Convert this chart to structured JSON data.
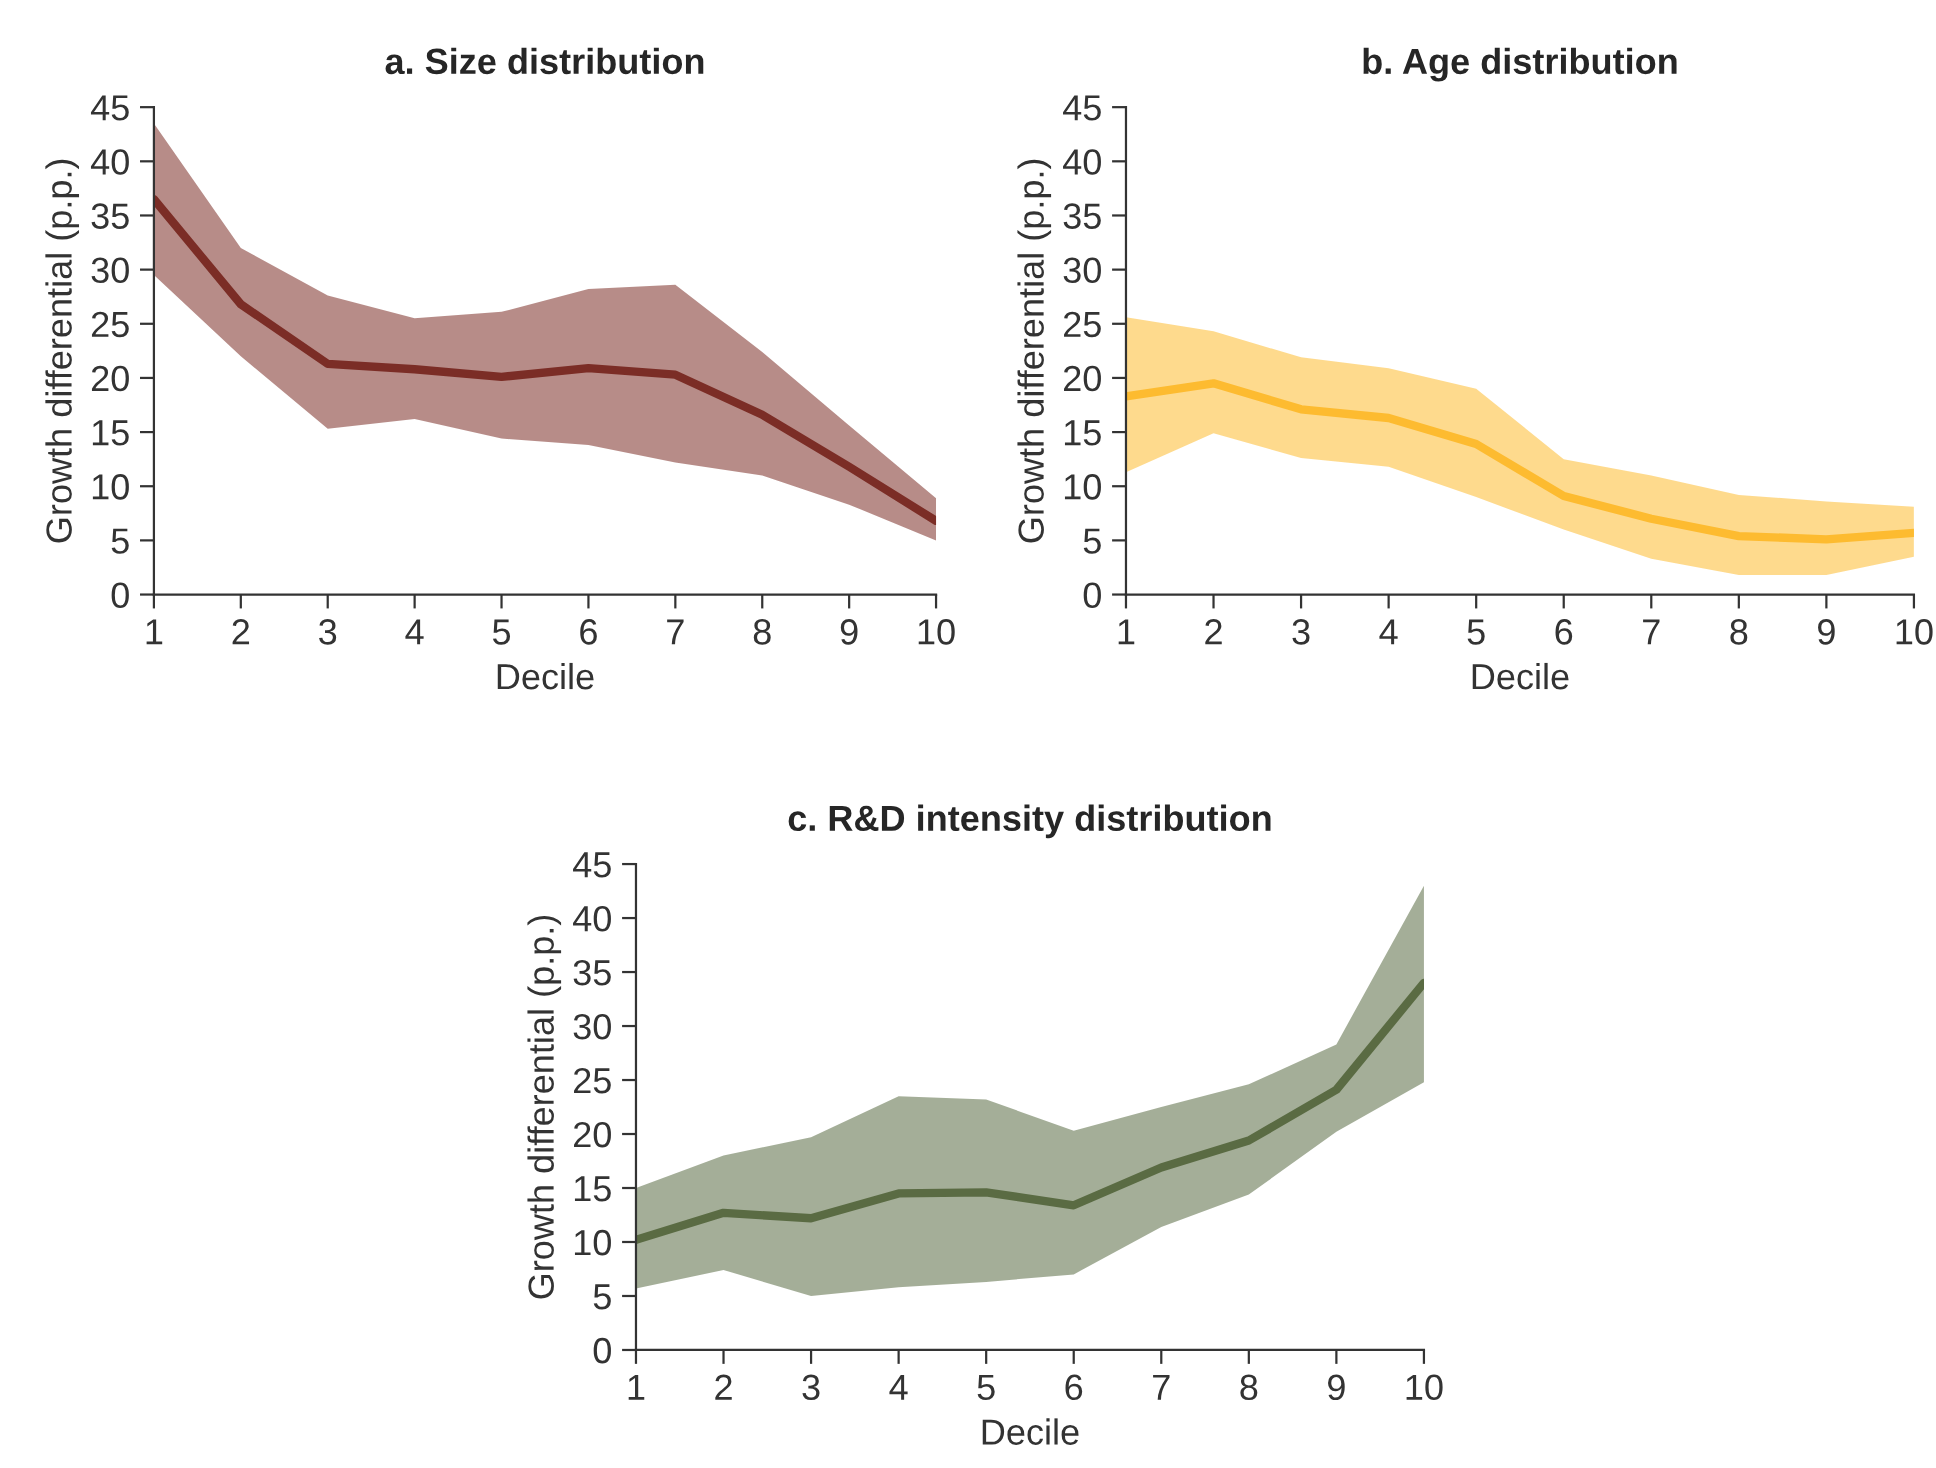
{
  "chart_data": [
    {
      "type": "line",
      "title": "a. Size distribution",
      "xlabel": "Decile",
      "ylabel": "Growth differential (p.p.)",
      "x": [
        1,
        2,
        3,
        4,
        5,
        6,
        7,
        8,
        9,
        10
      ],
      "xlim": [
        1,
        10
      ],
      "xticks": [
        1,
        2,
        3,
        4,
        5,
        6,
        7,
        8,
        9,
        10
      ],
      "ylim": [
        0,
        45
      ],
      "yticks": [
        0,
        5,
        10,
        15,
        20,
        25,
        30,
        35,
        40,
        45
      ],
      "grid": false,
      "legend": false,
      "series": [
        {
          "color": "#7b2d26",
          "values": [
            36.5,
            26.8,
            21.3,
            20.8,
            20.1,
            20.9,
            20.3,
            16.6,
            11.8,
            6.8
          ],
          "upper": [
            43.5,
            32,
            27.6,
            25.5,
            26.1,
            28.2,
            28.6,
            22.4,
            15.6,
            8.9
          ],
          "lower": [
            29.5,
            22,
            15.3,
            16.2,
            14.4,
            13.8,
            12.2,
            11,
            8.3,
            5
          ]
        }
      ]
    },
    {
      "type": "line",
      "title": "b. Age distribution",
      "xlabel": "Decile",
      "ylabel": "Growth differential (p.p.)",
      "x": [
        1,
        2,
        3,
        4,
        5,
        6,
        7,
        8,
        9,
        10
      ],
      "xlim": [
        1,
        10
      ],
      "xticks": [
        1,
        2,
        3,
        4,
        5,
        6,
        7,
        8,
        9,
        10
      ],
      "ylim": [
        0,
        45
      ],
      "yticks": [
        0,
        5,
        10,
        15,
        20,
        25,
        30,
        35,
        40,
        45
      ],
      "grid": false,
      "legend": false,
      "series": [
        {
          "color": "#fdbb30",
          "values": [
            18.3,
            19.5,
            17.1,
            16.3,
            13.9,
            9.1,
            7.0,
            5.4,
            5.1,
            5.7
          ],
          "upper": [
            25.6,
            24.3,
            21.9,
            20.9,
            19.0,
            12.5,
            11.0,
            9.2,
            8.6,
            8.1
          ],
          "lower": [
            11.3,
            14.9,
            12.6,
            11.8,
            9.0,
            6.0,
            3.3,
            1.8,
            1.8,
            3.5
          ]
        }
      ]
    },
    {
      "type": "line",
      "title": "c. R&D intensity distribution",
      "xlabel": "Decile",
      "ylabel": "Growth differential (p.p.)",
      "x": [
        1,
        2,
        3,
        4,
        5,
        6,
        7,
        8,
        9,
        10
      ],
      "xlim": [
        1,
        10
      ],
      "xticks": [
        1,
        2,
        3,
        4,
        5,
        6,
        7,
        8,
        9,
        10
      ],
      "ylim": [
        0,
        45
      ],
      "yticks": [
        0,
        5,
        10,
        15,
        20,
        25,
        30,
        35,
        40,
        45
      ],
      "grid": false,
      "legend": false,
      "series": [
        {
          "color": "#5a6b43",
          "values": [
            10.2,
            12.7,
            12.2,
            14.5,
            14.6,
            13.4,
            16.9,
            19.4,
            24.1,
            34.0
          ],
          "upper": [
            15.0,
            18.0,
            19.7,
            23.5,
            23.2,
            20.3,
            22.5,
            24.6,
            28.3,
            43.0
          ],
          "lower": [
            5.7,
            7.4,
            5.0,
            5.8,
            6.3,
            7.0,
            11.4,
            14.4,
            20.2,
            24.8
          ]
        }
      ]
    }
  ]
}
